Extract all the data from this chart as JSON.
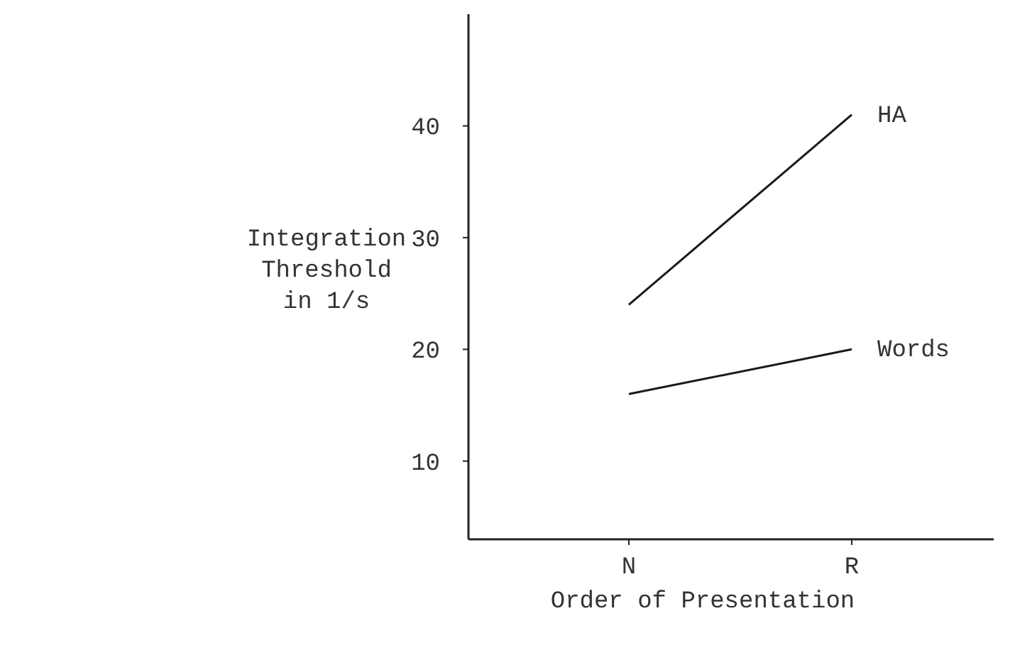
{
  "chart_data": {
    "type": "line",
    "xlabel": "Order of Presentation",
    "ylabel": "Integration\nThreshold\nin 1/s",
    "categories": [
      "N",
      "R"
    ],
    "series": [
      {
        "name": "HA",
        "color": "#1a1a1a",
        "values": [
          24,
          41
        ]
      },
      {
        "name": "Words",
        "color": "#1a1a1a",
        "values": [
          16,
          20
        ]
      }
    ],
    "ylim": [
      3,
      50
    ],
    "yticks": [
      10,
      20,
      30,
      40
    ],
    "grid": false,
    "marker": "none",
    "line_style": "solid"
  }
}
